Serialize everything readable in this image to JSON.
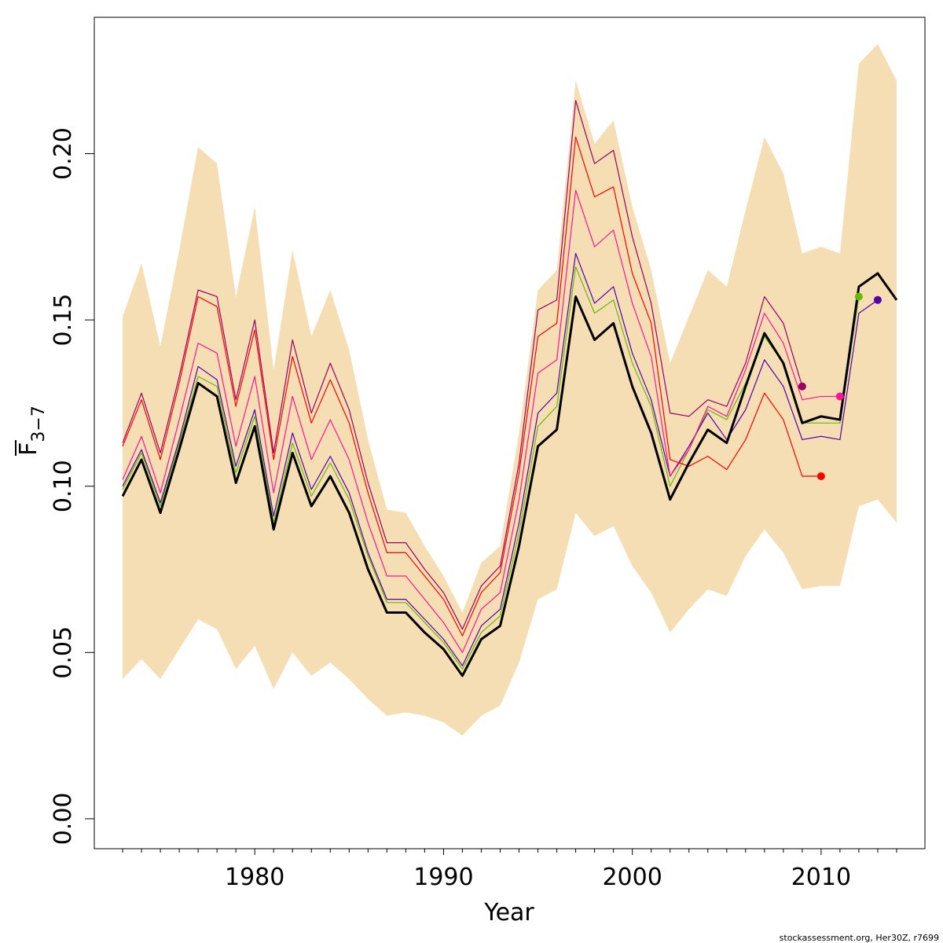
{
  "chart_data": {
    "type": "line",
    "xlabel": "Year",
    "ylabel": {
      "symbol": "F",
      "subscript": "3−7"
    },
    "xlim": [
      1971.5,
      2015.5
    ],
    "ylim": [
      -0.009,
      0.241
    ],
    "x_ticks": [
      1980,
      1990,
      2000,
      2010
    ],
    "x_tick_labels": [
      "1980",
      "1990",
      "2000",
      "2010"
    ],
    "y_ticks": [
      0.0,
      0.05,
      0.1,
      0.15,
      0.2
    ],
    "y_tick_labels": [
      "0.00",
      "0.05",
      "0.10",
      "0.15",
      "0.20"
    ],
    "grid": false,
    "legend": "none",
    "credit": "stockassessment.org, Her30Z, r7699",
    "band": {
      "color": "#f5deb3",
      "x": [
        1973,
        1974,
        1975,
        1976,
        1977,
        1978,
        1979,
        1980,
        1981,
        1982,
        1983,
        1984,
        1985,
        1986,
        1987,
        1988,
        1989,
        1990,
        1991,
        1992,
        1993,
        1994,
        1995,
        1996,
        1997,
        1998,
        1999,
        2000,
        2001,
        2002,
        2003,
        2004,
        2005,
        2006,
        2007,
        2008,
        2009,
        2010,
        2011,
        2012,
        2013,
        2014
      ],
      "upper": [
        0.151,
        0.167,
        0.142,
        0.171,
        0.202,
        0.197,
        0.157,
        0.184,
        0.135,
        0.171,
        0.145,
        0.159,
        0.141,
        0.114,
        0.093,
        0.092,
        0.082,
        0.073,
        0.062,
        0.077,
        0.082,
        0.116,
        0.159,
        0.165,
        0.222,
        0.203,
        0.21,
        0.184,
        0.165,
        0.137,
        0.151,
        0.165,
        0.16,
        0.183,
        0.205,
        0.194,
        0.17,
        0.172,
        0.17,
        0.227,
        0.233,
        0.222
      ],
      "lower": [
        0.042,
        0.048,
        0.042,
        0.051,
        0.06,
        0.057,
        0.045,
        0.052,
        0.039,
        0.05,
        0.043,
        0.047,
        0.042,
        0.036,
        0.031,
        0.032,
        0.031,
        0.029,
        0.025,
        0.031,
        0.034,
        0.047,
        0.066,
        0.069,
        0.092,
        0.085,
        0.088,
        0.076,
        0.068,
        0.056,
        0.063,
        0.069,
        0.067,
        0.079,
        0.087,
        0.08,
        0.069,
        0.07,
        0.07,
        0.094,
        0.096,
        0.089
      ]
    },
    "series": [
      {
        "color": "#000000",
        "x": [
          1973,
          1974,
          1975,
          1976,
          1977,
          1978,
          1979,
          1980,
          1981,
          1982,
          1983,
          1984,
          1985,
          1986,
          1987,
          1988,
          1989,
          1990,
          1991,
          1992,
          1993,
          1994,
          1995,
          1996,
          1997,
          1998,
          1999,
          2000,
          2001,
          2002,
          2003,
          2004,
          2005,
          2006,
          2007,
          2008,
          2009,
          2010,
          2011,
          2012,
          2013,
          2014
        ],
        "values": [
          0.097,
          0.108,
          0.092,
          0.111,
          0.131,
          0.127,
          0.101,
          0.118,
          0.087,
          0.11,
          0.094,
          0.103,
          0.092,
          0.075,
          0.062,
          0.062,
          0.056,
          0.051,
          0.043,
          0.054,
          0.058,
          0.082,
          0.112,
          0.117,
          0.157,
          0.144,
          0.149,
          0.13,
          0.116,
          0.096,
          0.107,
          0.117,
          0.113,
          0.13,
          0.146,
          0.137,
          0.119,
          0.121,
          0.12,
          0.16,
          0.164,
          0.156
        ]
      },
      {
        "color": "#66bb00",
        "x": [
          1973,
          1974,
          1975,
          1976,
          1977,
          1978,
          1979,
          1980,
          1981,
          1982,
          1983,
          1984,
          1985,
          1986,
          1987,
          1988,
          1989,
          1990,
          1991,
          1992,
          1993,
          1994,
          1995,
          1996,
          1997,
          1998,
          1999,
          2000,
          2001,
          2002,
          2003,
          2004,
          2005,
          2006,
          2007,
          2008,
          2009,
          2010,
          2011,
          2012
        ],
        "values": [
          0.099,
          0.11,
          0.094,
          0.113,
          0.133,
          0.13,
          0.104,
          0.121,
          0.089,
          0.113,
          0.097,
          0.107,
          0.096,
          0.079,
          0.065,
          0.065,
          0.059,
          0.053,
          0.045,
          0.056,
          0.061,
          0.086,
          0.118,
          0.124,
          0.166,
          0.152,
          0.156,
          0.137,
          0.124,
          0.1,
          0.111,
          0.123,
          0.12,
          0.131,
          0.145,
          0.137,
          0.119,
          0.119,
          0.119,
          0.157
        ]
      },
      {
        "color": "#5500aa",
        "x": [
          1973,
          1974,
          1975,
          1976,
          1977,
          1978,
          1979,
          1980,
          1981,
          1982,
          1983,
          1984,
          1985,
          1986,
          1987,
          1988,
          1989,
          1990,
          1991,
          1992,
          1993,
          1994,
          1995,
          1996,
          1997,
          1998,
          1999,
          2000,
          2001,
          2002,
          2003,
          2004,
          2005,
          2006,
          2007,
          2008,
          2009,
          2010,
          2011,
          2012,
          2013
        ],
        "values": [
          0.1,
          0.111,
          0.095,
          0.114,
          0.136,
          0.132,
          0.106,
          0.123,
          0.091,
          0.116,
          0.099,
          0.109,
          0.098,
          0.08,
          0.066,
          0.066,
          0.06,
          0.054,
          0.046,
          0.058,
          0.063,
          0.089,
          0.122,
          0.128,
          0.17,
          0.155,
          0.16,
          0.14,
          0.126,
          0.103,
          0.112,
          0.122,
          0.114,
          0.123,
          0.138,
          0.13,
          0.114,
          0.115,
          0.114,
          0.152,
          0.156
        ]
      },
      {
        "color": "#ff1493",
        "x": [
          1973,
          1974,
          1975,
          1976,
          1977,
          1978,
          1979,
          1980,
          1981,
          1982,
          1983,
          1984,
          1985,
          1986,
          1987,
          1988,
          1989,
          1990,
          1991,
          1992,
          1993,
          1994,
          1995,
          1996,
          1997,
          1998,
          1999,
          2000,
          2001,
          2002,
          2003,
          2004,
          2005,
          2006,
          2007,
          2008,
          2009,
          2010,
          2011
        ],
        "values": [
          0.102,
          0.115,
          0.098,
          0.12,
          0.143,
          0.14,
          0.112,
          0.133,
          0.098,
          0.127,
          0.108,
          0.12,
          0.108,
          0.089,
          0.073,
          0.073,
          0.066,
          0.059,
          0.05,
          0.063,
          0.068,
          0.096,
          0.134,
          0.138,
          0.189,
          0.172,
          0.177,
          0.155,
          0.139,
          0.103,
          0.111,
          0.124,
          0.121,
          0.135,
          0.152,
          0.143,
          0.126,
          0.127,
          0.127
        ]
      },
      {
        "color": "#ff0000",
        "x": [
          1973,
          1974,
          1975,
          1976,
          1977,
          1978,
          1979,
          1980,
          1981,
          1982,
          1983,
          1984,
          1985,
          1986,
          1987,
          1988,
          1989,
          1990,
          1991,
          1992,
          1993,
          1994,
          1995,
          1996,
          1997,
          1998,
          1999,
          2000,
          2001,
          2002,
          2003,
          2004,
          2005,
          2006,
          2007,
          2008,
          2009,
          2010
        ],
        "values": [
          0.112,
          0.126,
          0.108,
          0.131,
          0.157,
          0.154,
          0.124,
          0.147,
          0.108,
          0.139,
          0.119,
          0.132,
          0.119,
          0.098,
          0.08,
          0.08,
          0.073,
          0.066,
          0.055,
          0.068,
          0.074,
          0.104,
          0.145,
          0.149,
          0.205,
          0.187,
          0.19,
          0.164,
          0.149,
          0.108,
          0.106,
          0.109,
          0.105,
          0.114,
          0.128,
          0.12,
          0.103,
          0.103
        ]
      },
      {
        "color": "#990066",
        "x": [
          1973,
          1974,
          1975,
          1976,
          1977,
          1978,
          1979,
          1980,
          1981,
          1982,
          1983,
          1984,
          1985,
          1986,
          1987,
          1988,
          1989,
          1990,
          1991,
          1992,
          1993,
          1994,
          1995,
          1996,
          1997,
          1998,
          1999,
          2000,
          2001,
          2002,
          2003,
          2004,
          2005,
          2006,
          2007,
          2008,
          2009
        ],
        "values": [
          0.113,
          0.128,
          0.11,
          0.133,
          0.159,
          0.157,
          0.126,
          0.15,
          0.11,
          0.144,
          0.122,
          0.137,
          0.123,
          0.101,
          0.083,
          0.083,
          0.075,
          0.068,
          0.057,
          0.07,
          0.076,
          0.107,
          0.153,
          0.156,
          0.216,
          0.197,
          0.201,
          0.175,
          0.155,
          0.122,
          0.121,
          0.126,
          0.124,
          0.137,
          0.157,
          0.149,
          0.13
        ]
      }
    ],
    "endpoints": [
      {
        "x": 2009,
        "y": 0.13,
        "color": "#990066"
      },
      {
        "x": 2010,
        "y": 0.103,
        "color": "#ff0000"
      },
      {
        "x": 2011,
        "y": 0.127,
        "color": "#ff1493"
      },
      {
        "x": 2012,
        "y": 0.157,
        "color": "#66bb00"
      },
      {
        "x": 2013,
        "y": 0.156,
        "color": "#5500aa"
      }
    ]
  }
}
